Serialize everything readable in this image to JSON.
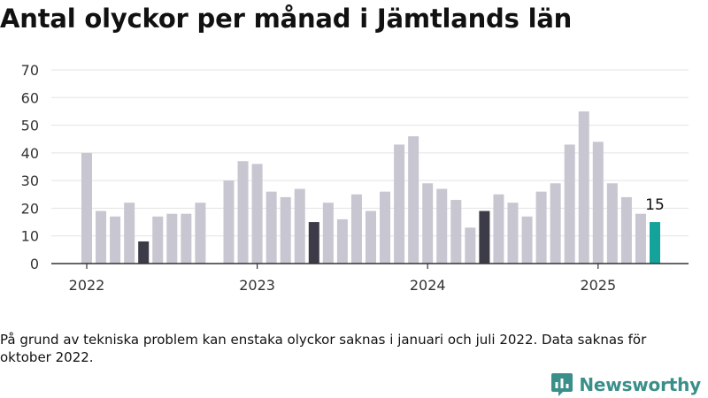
{
  "title": "Antal olyckor per månad i Jämtlands län",
  "note": "På grund av tekniska problem kan enstaka olyckor saknas i januari och juli 2022. Data saknas för oktober 2022.",
  "brand": {
    "name": "Newsworthy",
    "icon": "newsworthy-logo-icon",
    "color": "#3a8f8a"
  },
  "colors": {
    "normal": "#c8c6d0",
    "highlight": "#3c3b48",
    "latest": "#14a39b",
    "grid": "#e3e3e3",
    "axis": "#333333"
  },
  "chart_data": {
    "type": "bar",
    "title": "Antal olyckor per månad i Jämtlands län",
    "xlabel": "",
    "ylabel": "",
    "ylim": [
      0,
      70
    ],
    "yticks": [
      0,
      10,
      20,
      30,
      40,
      50,
      60,
      70
    ],
    "xtick_labels": [
      "2022",
      "2023",
      "2024",
      "2025"
    ],
    "grid": true,
    "highlight_month": "maj",
    "data_labels": [
      {
        "month": "2025-05",
        "value": 15
      }
    ],
    "months": [
      "2022-01",
      "2022-02",
      "2022-03",
      "2022-04",
      "2022-05",
      "2022-06",
      "2022-07",
      "2022-08",
      "2022-09",
      "2022-10",
      "2022-11",
      "2022-12",
      "2023-01",
      "2023-02",
      "2023-03",
      "2023-04",
      "2023-05",
      "2023-06",
      "2023-07",
      "2023-08",
      "2023-09",
      "2023-10",
      "2023-11",
      "2023-12",
      "2024-01",
      "2024-02",
      "2024-03",
      "2024-04",
      "2024-05",
      "2024-06",
      "2024-07",
      "2024-08",
      "2024-09",
      "2024-10",
      "2024-11",
      "2024-12",
      "2025-01",
      "2025-02",
      "2025-03",
      "2025-04",
      "2025-05"
    ],
    "values": [
      40,
      19,
      17,
      22,
      8,
      17,
      18,
      18,
      22,
      null,
      30,
      37,
      36,
      26,
      24,
      27,
      15,
      22,
      16,
      25,
      19,
      26,
      43,
      46,
      29,
      27,
      23,
      13,
      19,
      25,
      22,
      17,
      26,
      29,
      43,
      55,
      44,
      29,
      24,
      18,
      15
    ]
  }
}
